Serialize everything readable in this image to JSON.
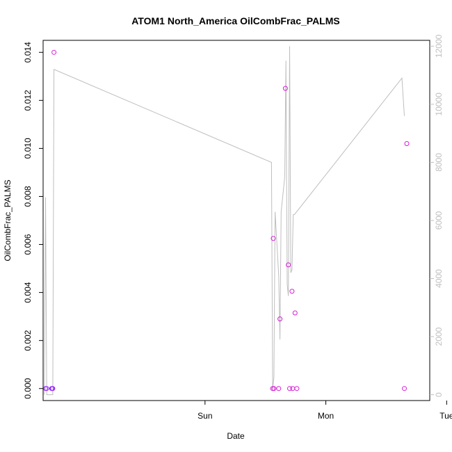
{
  "chart_data": {
    "type": "scatter",
    "title": "ATOM1 North_America OilCombFrac_PALMS",
    "xlabel": "Date",
    "ylabel": "OilCombFrac_PALMS",
    "x_ticks": [
      "Sun",
      "Mon",
      "Tue"
    ],
    "x_units": "days since Saturday 00:00",
    "xlim": [
      -0.34,
      2.86
    ],
    "ylim": [
      -0.0005,
      0.0145
    ],
    "y_ticks": [
      "0.000",
      "0.002",
      "0.004",
      "0.006",
      "0.008",
      "0.010",
      "0.012",
      "0.014"
    ],
    "y2lim": [
      -200,
      12200
    ],
    "y2_ticks": [
      "0",
      "2000",
      "4000",
      "6000",
      "8000",
      "10000",
      "12000"
    ],
    "grid": false,
    "series": [
      {
        "kind": "points",
        "color": "#9b30ff",
        "x": [
          -0.32,
          -0.31,
          -0.27,
          -0.265,
          -0.262,
          -0.26
        ],
        "y": [
          0.0,
          0.0,
          0.0,
          0.0,
          0.0,
          0.0
        ]
      },
      {
        "kind": "points",
        "color": "#d61ed6",
        "x": [
          -0.25,
          1.56,
          1.565,
          1.57,
          1.61,
          1.62,
          1.665,
          1.69,
          1.7,
          1.72,
          1.725,
          1.745,
          1.76,
          2.65,
          2.67
        ],
        "y": [
          0.014,
          0.0,
          0.00625,
          0.0,
          0.0,
          0.0029,
          0.0125,
          0.00515,
          0.0,
          0.00405,
          0.0,
          0.00315,
          0.0,
          0.0,
          0.0102
        ]
      },
      {
        "kind": "line",
        "axis": "right",
        "color": "#bebebe",
        "x": [
          -0.33,
          -0.32,
          -0.31,
          -0.26,
          -0.25,
          1.55,
          1.56,
          1.57,
          1.58,
          1.61,
          1.62,
          1.63,
          1.66,
          1.67,
          1.68,
          1.69,
          1.7,
          1.71,
          1.72,
          1.73,
          1.74,
          2.63,
          2.65
        ],
        "y": [
          0,
          6800,
          0,
          0,
          11200,
          8000,
          200,
          600,
          6300,
          4100,
          1900,
          6300,
          7500,
          11500,
          3800,
          3400,
          12000,
          4200,
          4300,
          6200,
          6200,
          10900,
          9600
        ]
      }
    ]
  }
}
